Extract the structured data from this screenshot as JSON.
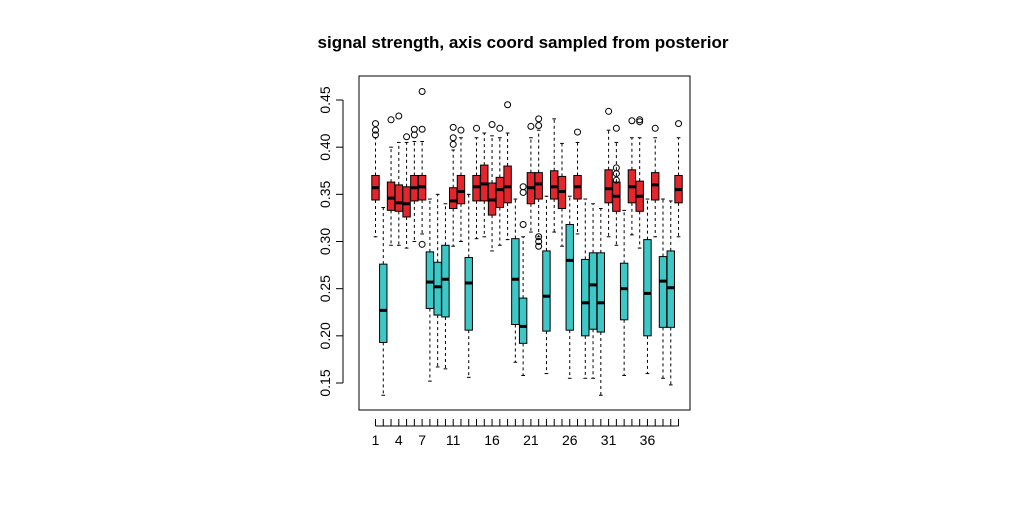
{
  "chart_data": {
    "type": "boxplot",
    "title": "signal strength, axis coord sampled from posterior",
    "xlabel": "",
    "ylabel": "",
    "ylim": [
      0.12,
      0.47
    ],
    "yticks": [
      0.15,
      0.2,
      0.25,
      0.3,
      0.35,
      0.4,
      0.45
    ],
    "yticklabels": [
      "0.15",
      "0.20",
      "0.25",
      "0.30",
      "0.35",
      "0.40",
      "0.45"
    ],
    "xticks_all": [
      1,
      2,
      3,
      4,
      5,
      6,
      7,
      8,
      9,
      10,
      11,
      12,
      13,
      14,
      15,
      16,
      17,
      18,
      19,
      20,
      21,
      22,
      23,
      24,
      25,
      26,
      27,
      28,
      29,
      30,
      31,
      32,
      33,
      34,
      35,
      36,
      37,
      38,
      39,
      40
    ],
    "xticklabels": [
      {
        "pos": 1,
        "label": "1"
      },
      {
        "pos": 4,
        "label": "4"
      },
      {
        "pos": 7,
        "label": "7"
      },
      {
        "pos": 11,
        "label": "11"
      },
      {
        "pos": 16,
        "label": "16"
      },
      {
        "pos": 21,
        "label": "21"
      },
      {
        "pos": 26,
        "label": "26"
      },
      {
        "pos": 31,
        "label": "31"
      },
      {
        "pos": 36,
        "label": "36"
      }
    ],
    "colors": {
      "red": "#e3262c",
      "cyan": "#3ec7c7"
    },
    "boxes": [
      {
        "pos": 1,
        "color": "red",
        "q1": 0.344,
        "median": 0.357,
        "q3": 0.37,
        "whisker_low": 0.305,
        "whisker_high": 0.41,
        "outliers": [
          0.413,
          0.418,
          0.425
        ]
      },
      {
        "pos": 2,
        "color": "cyan",
        "q1": 0.193,
        "median": 0.227,
        "q3": 0.276,
        "whisker_low": 0.137,
        "whisker_high": 0.336,
        "outliers": []
      },
      {
        "pos": 3,
        "color": "red",
        "q1": 0.333,
        "median": 0.346,
        "q3": 0.363,
        "whisker_low": 0.296,
        "whisker_high": 0.4,
        "outliers": [
          0.429
        ]
      },
      {
        "pos": 4,
        "color": "red",
        "q1": 0.332,
        "median": 0.341,
        "q3": 0.36,
        "whisker_low": 0.296,
        "whisker_high": 0.405,
        "outliers": [
          0.433
        ]
      },
      {
        "pos": 5,
        "color": "red",
        "q1": 0.326,
        "median": 0.34,
        "q3": 0.358,
        "whisker_low": 0.293,
        "whisker_high": 0.405,
        "outliers": [
          0.411
        ]
      },
      {
        "pos": 6,
        "color": "red",
        "q1": 0.343,
        "median": 0.357,
        "q3": 0.37,
        "whisker_low": 0.3,
        "whisker_high": 0.406,
        "outliers": [
          0.413,
          0.419
        ]
      },
      {
        "pos": 7,
        "color": "red",
        "q1": 0.344,
        "median": 0.358,
        "q3": 0.37,
        "whisker_low": 0.308,
        "whisker_high": 0.406,
        "outliers": [
          0.297,
          0.419,
          0.459
        ]
      },
      {
        "pos": 8,
        "color": "cyan",
        "q1": 0.229,
        "median": 0.257,
        "q3": 0.289,
        "whisker_low": 0.152,
        "whisker_high": 0.345,
        "outliers": []
      },
      {
        "pos": 9,
        "color": "cyan",
        "q1": 0.222,
        "median": 0.252,
        "q3": 0.278,
        "whisker_low": 0.167,
        "whisker_high": 0.35,
        "outliers": []
      },
      {
        "pos": 10,
        "color": "cyan",
        "q1": 0.22,
        "median": 0.26,
        "q3": 0.296,
        "whisker_low": 0.165,
        "whisker_high": 0.34,
        "outliers": []
      },
      {
        "pos": 11,
        "color": "red",
        "q1": 0.335,
        "median": 0.343,
        "q3": 0.357,
        "whisker_low": 0.295,
        "whisker_high": 0.397,
        "outliers": [
          0.403,
          0.41,
          0.421
        ]
      },
      {
        "pos": 12,
        "color": "red",
        "q1": 0.34,
        "median": 0.353,
        "q3": 0.37,
        "whisker_low": 0.3,
        "whisker_high": 0.41,
        "outliers": [
          0.418
        ]
      },
      {
        "pos": 13,
        "color": "cyan",
        "q1": 0.206,
        "median": 0.256,
        "q3": 0.283,
        "whisker_low": 0.156,
        "whisker_high": 0.35,
        "outliers": []
      },
      {
        "pos": 14,
        "color": "red",
        "q1": 0.343,
        "median": 0.358,
        "q3": 0.37,
        "whisker_low": 0.303,
        "whisker_high": 0.41,
        "outliers": [
          0.42
        ]
      },
      {
        "pos": 15,
        "color": "red",
        "q1": 0.343,
        "median": 0.361,
        "q3": 0.381,
        "whisker_low": 0.305,
        "whisker_high": 0.415,
        "outliers": []
      },
      {
        "pos": 16,
        "color": "red",
        "q1": 0.328,
        "median": 0.344,
        "q3": 0.362,
        "whisker_low": 0.29,
        "whisker_high": 0.412,
        "outliers": [
          0.424
        ]
      },
      {
        "pos": 17,
        "color": "red",
        "q1": 0.336,
        "median": 0.355,
        "q3": 0.368,
        "whisker_low": 0.296,
        "whisker_high": 0.41,
        "outliers": [
          0.42
        ]
      },
      {
        "pos": 18,
        "color": "red",
        "q1": 0.341,
        "median": 0.358,
        "q3": 0.38,
        "whisker_low": 0.302,
        "whisker_high": 0.415,
        "outliers": [
          0.445
        ]
      },
      {
        "pos": 19,
        "color": "cyan",
        "q1": 0.212,
        "median": 0.26,
        "q3": 0.303,
        "whisker_low": 0.172,
        "whisker_high": 0.345,
        "outliers": []
      },
      {
        "pos": 20,
        "color": "cyan",
        "q1": 0.192,
        "median": 0.21,
        "q3": 0.24,
        "whisker_low": 0.158,
        "whisker_high": 0.305,
        "outliers": [
          0.318,
          0.352,
          0.358
        ]
      },
      {
        "pos": 21,
        "color": "red",
        "q1": 0.34,
        "median": 0.357,
        "q3": 0.373,
        "whisker_low": 0.31,
        "whisker_high": 0.41,
        "outliers": [
          0.422
        ]
      },
      {
        "pos": 22,
        "color": "red",
        "q1": 0.345,
        "median": 0.361,
        "q3": 0.373,
        "whisker_low": 0.305,
        "whisker_high": 0.418,
        "outliers": [
          0.295,
          0.3,
          0.305,
          0.423,
          0.43
        ]
      },
      {
        "pos": 23,
        "color": "cyan",
        "q1": 0.205,
        "median": 0.242,
        "q3": 0.29,
        "whisker_low": 0.16,
        "whisker_high": 0.348,
        "outliers": []
      },
      {
        "pos": 24,
        "color": "red",
        "q1": 0.345,
        "median": 0.358,
        "q3": 0.375,
        "whisker_low": 0.31,
        "whisker_high": 0.43,
        "outliers": []
      },
      {
        "pos": 25,
        "color": "red",
        "q1": 0.335,
        "median": 0.353,
        "q3": 0.369,
        "whisker_low": 0.295,
        "whisker_high": 0.404,
        "outliers": []
      },
      {
        "pos": 26,
        "color": "cyan",
        "q1": 0.206,
        "median": 0.28,
        "q3": 0.318,
        "whisker_low": 0.155,
        "whisker_high": 0.348,
        "outliers": []
      },
      {
        "pos": 27,
        "color": "red",
        "q1": 0.345,
        "median": 0.358,
        "q3": 0.37,
        "whisker_low": 0.308,
        "whisker_high": 0.405,
        "outliers": [
          0.416
        ]
      },
      {
        "pos": 28,
        "color": "cyan",
        "q1": 0.2,
        "median": 0.235,
        "q3": 0.281,
        "whisker_low": 0.155,
        "whisker_high": 0.345,
        "outliers": []
      },
      {
        "pos": 29,
        "color": "cyan",
        "q1": 0.207,
        "median": 0.254,
        "q3": 0.288,
        "whisker_low": 0.155,
        "whisker_high": 0.34,
        "outliers": []
      },
      {
        "pos": 30,
        "color": "cyan",
        "q1": 0.204,
        "median": 0.235,
        "q3": 0.288,
        "whisker_low": 0.137,
        "whisker_high": 0.335,
        "outliers": []
      },
      {
        "pos": 31,
        "color": "red",
        "q1": 0.341,
        "median": 0.356,
        "q3": 0.376,
        "whisker_low": 0.305,
        "whisker_high": 0.418,
        "outliers": [
          0.438
        ]
      },
      {
        "pos": 32,
        "color": "red",
        "q1": 0.332,
        "median": 0.348,
        "q3": 0.363,
        "whisker_low": 0.296,
        "whisker_high": 0.405,
        "outliers": [
          0.365,
          0.372,
          0.378,
          0.42
        ]
      },
      {
        "pos": 33,
        "color": "cyan",
        "q1": 0.217,
        "median": 0.25,
        "q3": 0.277,
        "whisker_low": 0.158,
        "whisker_high": 0.333,
        "outliers": []
      },
      {
        "pos": 34,
        "color": "red",
        "q1": 0.341,
        "median": 0.358,
        "q3": 0.376,
        "whisker_low": 0.307,
        "whisker_high": 0.41,
        "outliers": [
          0.428
        ]
      },
      {
        "pos": 35,
        "color": "red",
        "q1": 0.332,
        "median": 0.348,
        "q3": 0.364,
        "whisker_low": 0.293,
        "whisker_high": 0.41,
        "outliers": [
          0.427,
          0.429
        ]
      },
      {
        "pos": 36,
        "color": "cyan",
        "q1": 0.2,
        "median": 0.245,
        "q3": 0.302,
        "whisker_low": 0.16,
        "whisker_high": 0.345,
        "outliers": []
      },
      {
        "pos": 37,
        "color": "red",
        "q1": 0.344,
        "median": 0.36,
        "q3": 0.373,
        "whisker_low": 0.305,
        "whisker_high": 0.41,
        "outliers": [
          0.42
        ]
      },
      {
        "pos": 38,
        "color": "cyan",
        "q1": 0.209,
        "median": 0.258,
        "q3": 0.284,
        "whisker_low": 0.155,
        "whisker_high": 0.345,
        "outliers": []
      },
      {
        "pos": 39,
        "color": "cyan",
        "q1": 0.209,
        "median": 0.251,
        "q3": 0.29,
        "whisker_low": 0.148,
        "whisker_high": 0.343,
        "outliers": []
      },
      {
        "pos": 40,
        "color": "red",
        "q1": 0.341,
        "median": 0.355,
        "q3": 0.37,
        "whisker_low": 0.305,
        "whisker_high": 0.41,
        "outliers": [
          0.425
        ]
      }
    ]
  }
}
